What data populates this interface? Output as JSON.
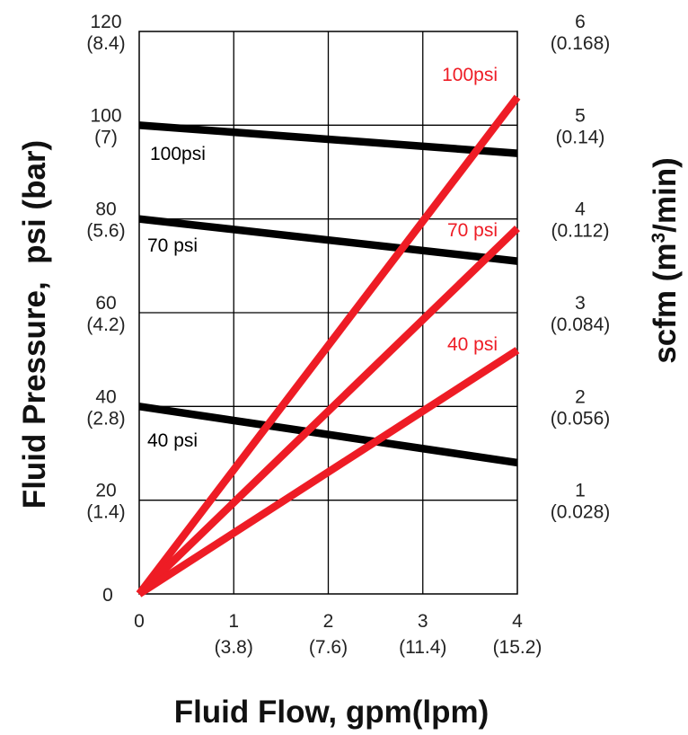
{
  "chart_data": {
    "type": "line",
    "xlabel": "Fluid Flow, gpm(lpm)",
    "ylabel": "Fluid Pressure,  psi (bar)",
    "ylabel_right": {
      "prefix": "scfm (m",
      "sup": "3",
      "suffix": "/min)"
    },
    "xlim": [
      0,
      4
    ],
    "ylim": [
      0,
      120
    ],
    "y2lim": [
      0,
      6
    ],
    "grid": true,
    "x_ticks": [
      {
        "value": 0,
        "label": "0",
        "sub": ""
      },
      {
        "value": 1,
        "label": "1",
        "sub": "(3.8)"
      },
      {
        "value": 2,
        "label": "2",
        "sub": "(7.6)"
      },
      {
        "value": 3,
        "label": "3",
        "sub": "(11.4)"
      },
      {
        "value": 4,
        "label": "4",
        "sub": "(15.2)"
      }
    ],
    "y_ticks": [
      {
        "value": 0,
        "label": "0",
        "sub": ""
      },
      {
        "value": 20,
        "label": "20",
        "sub": "(1.4)"
      },
      {
        "value": 40,
        "label": "40",
        "sub": "(2.8)"
      },
      {
        "value": 60,
        "label": "60",
        "sub": "(4.2)"
      },
      {
        "value": 80,
        "label": "80",
        "sub": "(5.6)"
      },
      {
        "value": 100,
        "label": "100",
        "sub": "(7)"
      },
      {
        "value": 120,
        "label": "120",
        "sub": "(8.4)"
      }
    ],
    "y2_ticks": [
      {
        "value": 1,
        "label": "1",
        "sub": "(0.028)"
      },
      {
        "value": 2,
        "label": "2",
        "sub": "(0.056)"
      },
      {
        "value": 3,
        "label": "3",
        "sub": "(0.084)"
      },
      {
        "value": 4,
        "label": "4",
        "sub": "(0.112)"
      },
      {
        "value": 5,
        "label": "5",
        "sub": "(0.14)"
      },
      {
        "value": 6,
        "label": "6",
        "sub": "(0.168)"
      }
    ],
    "series": [
      {
        "name": "100psi",
        "axis": "left",
        "color": "#000000",
        "x": [
          0,
          4
        ],
        "y": [
          100,
          94
        ]
      },
      {
        "name": "70 psi",
        "axis": "left",
        "color": "#000000",
        "x": [
          0,
          4
        ],
        "y": [
          80,
          71
        ]
      },
      {
        "name": "40 psi",
        "axis": "left",
        "color": "#000000",
        "x": [
          0,
          4
        ],
        "y": [
          40,
          28
        ]
      },
      {
        "name": "100psi",
        "axis": "right",
        "color": "#ee1c25",
        "x": [
          0,
          4
        ],
        "y": [
          0,
          5.3
        ]
      },
      {
        "name": "70 psi",
        "axis": "right",
        "color": "#ee1c25",
        "x": [
          0,
          4
        ],
        "y": [
          0,
          3.9
        ]
      },
      {
        "name": "40 psi",
        "axis": "right",
        "color": "#ee1c25",
        "x": [
          0,
          4
        ],
        "y": [
          0,
          2.6
        ]
      }
    ]
  }
}
